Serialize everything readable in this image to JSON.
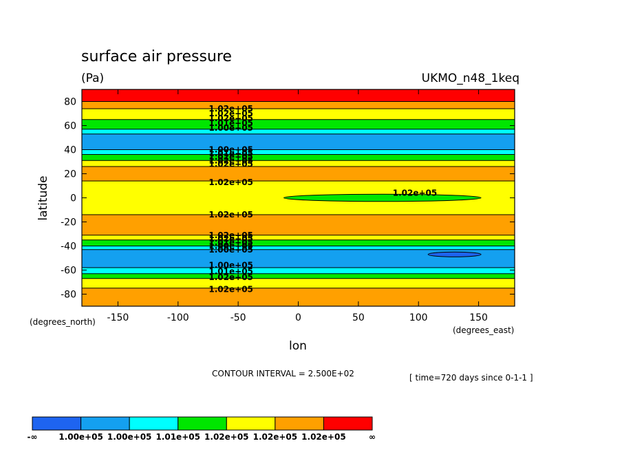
{
  "header": {
    "title": "surface air pressure",
    "units": "(Pa)",
    "dataset": "UKMO_n48_1keq"
  },
  "footer": {
    "contour_interval": "CONTOUR INTERVAL = 2.500E+02",
    "time_note": "[ time=720 days since 0-1-1 ]"
  },
  "chart_data": {
    "type": "heatmap",
    "subtype": "filled-contour",
    "title": "surface air pressure",
    "units": "(Pa)",
    "xlabel": "lon",
    "ylabel": "latitude",
    "x_units": "(degrees_east)",
    "y_units": "(degrees_north)",
    "xlim": [
      -180,
      180
    ],
    "ylim": [
      -90,
      90
    ],
    "x_ticks": [
      -150,
      -100,
      -50,
      0,
      50,
      100,
      150
    ],
    "y_ticks": [
      -80,
      -60,
      -40,
      -20,
      0,
      20,
      40,
      60,
      80
    ],
    "x_tick_labels": [
      "-150",
      "-100",
      "-50",
      "0",
      "50",
      "100",
      "150"
    ],
    "y_tick_labels": [
      "-80",
      "-60",
      "-40",
      "-20",
      "0",
      "20",
      "40",
      "60",
      "80"
    ],
    "contour_interval": 250,
    "bands_by_latitude": [
      {
        "lat_from": 80,
        "lat_to": 90,
        "level": 6
      },
      {
        "lat_from": 74,
        "lat_to": 80,
        "level": 5
      },
      {
        "lat_from": 65,
        "lat_to": 74,
        "level": 4
      },
      {
        "lat_from": 57,
        "lat_to": 65,
        "level": 3
      },
      {
        "lat_from": 53,
        "lat_to": 57,
        "level": 2
      },
      {
        "lat_from": 40,
        "lat_to": 53,
        "level": 1
      },
      {
        "lat_from": 36,
        "lat_to": 40,
        "level": 2
      },
      {
        "lat_from": 31,
        "lat_to": 36,
        "level": 3
      },
      {
        "lat_from": 26,
        "lat_to": 31,
        "level": 4
      },
      {
        "lat_from": 14,
        "lat_to": 26,
        "level": 5
      },
      {
        "lat_from": -14,
        "lat_to": 14,
        "level": 4
      },
      {
        "lat_from": -31,
        "lat_to": -14,
        "level": 5
      },
      {
        "lat_from": -35,
        "lat_to": -31,
        "level": 4
      },
      {
        "lat_from": -40,
        "lat_to": -35,
        "level": 3
      },
      {
        "lat_from": -43,
        "lat_to": -40,
        "level": 2
      },
      {
        "lat_from": -58,
        "lat_to": -43,
        "level": 1
      },
      {
        "lat_from": -63,
        "lat_to": -58,
        "level": 2
      },
      {
        "lat_from": -67,
        "lat_to": -63,
        "level": 3
      },
      {
        "lat_from": -75,
        "lat_to": -67,
        "level": 4
      },
      {
        "lat_from": -90,
        "lat_to": -75,
        "level": 5
      }
    ],
    "regions": [
      {
        "shape": "ellipse",
        "lon_center": 70,
        "lat_center": 0,
        "lon_half_width": 82,
        "lat_half_height": 3,
        "level": 3
      },
      {
        "shape": "ellipse",
        "lon_center": 130,
        "lat_center": -47,
        "lon_half_width": 22,
        "lat_half_height": 2,
        "level": 0
      }
    ],
    "contour_labels": [
      {
        "lon": -56,
        "lat": 74,
        "text": "1.02e+05"
      },
      {
        "lon": -56,
        "lat": 70,
        "text": "1.02e+05"
      },
      {
        "lon": -56,
        "lat": 66,
        "text": "1.02e+05"
      },
      {
        "lon": -56,
        "lat": 62,
        "text": "1.01e+05"
      },
      {
        "lon": -56,
        "lat": 58,
        "text": "1.00e+05"
      },
      {
        "lon": -56,
        "lat": 40,
        "text": "1.00e+05"
      },
      {
        "lon": -56,
        "lat": 37,
        "text": "1.01e+05"
      },
      {
        "lon": -56,
        "lat": 34,
        "text": "1.02e+05"
      },
      {
        "lon": -56,
        "lat": 31,
        "text": "1.02e+05"
      },
      {
        "lon": -56,
        "lat": 28,
        "text": "1.02e+05"
      },
      {
        "lon": -56,
        "lat": 13,
        "text": "1.02e+05"
      },
      {
        "lon": 97,
        "lat": 4,
        "text": "1.02e+05"
      },
      {
        "lon": -56,
        "lat": -14,
        "text": "1.02e+05"
      },
      {
        "lon": -56,
        "lat": -31,
        "text": "1.02e+05"
      },
      {
        "lon": -56,
        "lat": -34,
        "text": "1.02e+05"
      },
      {
        "lon": -56,
        "lat": -37,
        "text": "1.01e+05"
      },
      {
        "lon": -56,
        "lat": -40,
        "text": "1.00e+05"
      },
      {
        "lon": -56,
        "lat": -43,
        "text": "1.00e+05"
      },
      {
        "lon": -56,
        "lat": -56,
        "text": "1.00e+05"
      },
      {
        "lon": -56,
        "lat": -61,
        "text": "1.01e+05"
      },
      {
        "lon": -56,
        "lat": -66,
        "text": "1.02e+05"
      },
      {
        "lon": -56,
        "lat": -76,
        "text": "1.02e+05"
      }
    ],
    "colorbar": {
      "colors": [
        "#1e64f0",
        "#14a0f0",
        "#00ffff",
        "#00e600",
        "#ffff00",
        "#ffa000",
        "#ff0000"
      ],
      "labels": [
        "-∞",
        "1.00e+05",
        "1.00e+05",
        "1.01e+05",
        "1.02e+05",
        "1.02e+05",
        "1.02e+05",
        "∞"
      ]
    }
  }
}
